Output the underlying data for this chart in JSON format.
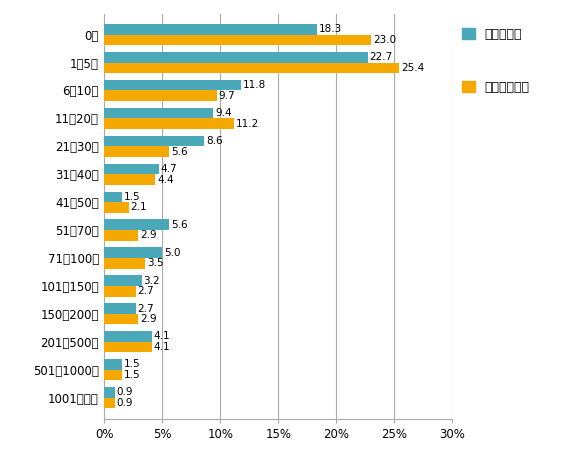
{
  "categories": [
    "0人",
    "1～5人",
    "6～10人",
    "11～20人",
    "21～30人",
    "31～40人",
    "41～50人",
    "51～70人",
    "71～100人",
    "101～150人",
    "150～200人",
    "201～500人",
    "501～1000人",
    "1001人以上"
  ],
  "follow": [
    18.3,
    22.7,
    11.8,
    9.4,
    8.6,
    4.7,
    1.5,
    5.6,
    5.0,
    3.2,
    2.7,
    4.1,
    1.5,
    0.9
  ],
  "follower": [
    23.0,
    25.4,
    9.7,
    11.2,
    5.6,
    4.4,
    2.1,
    2.9,
    3.5,
    2.7,
    2.9,
    4.1,
    1.5,
    0.9
  ],
  "follow_color": "#4AA8B8",
  "follower_color": "#F5A800",
  "legend_follow": "フォロー数",
  "legend_follower": "フォロワー数",
  "xlim": [
    0,
    30
  ],
  "xticks": [
    0,
    5,
    10,
    15,
    20,
    25,
    30
  ],
  "xtick_labels": [
    "0%",
    "5%",
    "10%",
    "15%",
    "20%",
    "25%",
    "30%"
  ],
  "bar_height": 0.38,
  "bg_color": "#ffffff",
  "grid_color": "#aaaaaa",
  "label_fontsize": 7.5,
  "tick_fontsize": 8.5
}
